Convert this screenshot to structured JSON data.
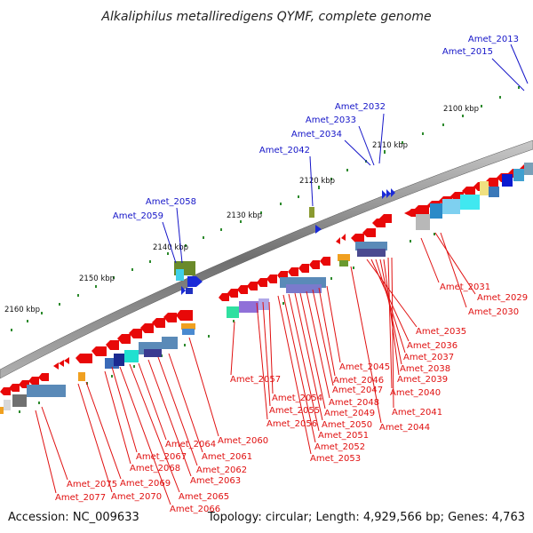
{
  "title": "Alkaliphilus metalliredigens QYMF, complete genome",
  "accession": "Accession: NC_009633",
  "summary": "Topology: circular; Length: 4,929,566 bp; Genes: 4,763",
  "colors": {
    "forward_label": "#1515c8",
    "reverse_label": "#e01010",
    "backbone": "#8a8a8a",
    "tick": "#2d8a2d"
  },
  "kbp_ticks": [
    {
      "text": "2100 kbp"
    },
    {
      "text": "2110 kbp"
    },
    {
      "text": "2120 kbp"
    },
    {
      "text": "2130 kbp"
    },
    {
      "text": "2140 kbp"
    },
    {
      "text": "2150 kbp"
    },
    {
      "text": "2160 kbp"
    }
  ],
  "forward_labels": [
    {
      "text": "Amet_2013"
    },
    {
      "text": "Amet_2015"
    },
    {
      "text": "Amet_2032"
    },
    {
      "text": "Amet_2033"
    },
    {
      "text": "Amet_2034"
    },
    {
      "text": "Amet_2042"
    },
    {
      "text": "Amet_2058"
    },
    {
      "text": "Amet_2059"
    }
  ],
  "reverse_labels": [
    {
      "text": "Amet_2031"
    },
    {
      "text": "Amet_2029"
    },
    {
      "text": "Amet_2030"
    },
    {
      "text": "Amet_2035"
    },
    {
      "text": "Amet_2036"
    },
    {
      "text": "Amet_2037"
    },
    {
      "text": "Amet_2038"
    },
    {
      "text": "Amet_2039"
    },
    {
      "text": "Amet_2040"
    },
    {
      "text": "Amet_2041"
    },
    {
      "text": "Amet_2044"
    },
    {
      "text": "Amet_2045"
    },
    {
      "text": "Amet_2046"
    },
    {
      "text": "Amet_2047"
    },
    {
      "text": "Amet_2048"
    },
    {
      "text": "Amet_2049"
    },
    {
      "text": "Amet_2050"
    },
    {
      "text": "Amet_2051"
    },
    {
      "text": "Amet_2052"
    },
    {
      "text": "Amet_2053"
    },
    {
      "text": "Amet_2054"
    },
    {
      "text": "Amet_2055"
    },
    {
      "text": "Amet_2056"
    },
    {
      "text": "Amet_2057"
    },
    {
      "text": "Amet_2060"
    },
    {
      "text": "Amet_2061"
    },
    {
      "text": "Amet_2062"
    },
    {
      "text": "Amet_2063"
    },
    {
      "text": "Amet_2064"
    },
    {
      "text": "Amet_2065"
    },
    {
      "text": "Amet_2066"
    },
    {
      "text": "Amet_2067"
    },
    {
      "text": "Amet_2068"
    },
    {
      "text": "Amet_2069"
    },
    {
      "text": "Amet_2070"
    },
    {
      "text": "Amet_2075"
    },
    {
      "text": "Amet_2077"
    }
  ]
}
